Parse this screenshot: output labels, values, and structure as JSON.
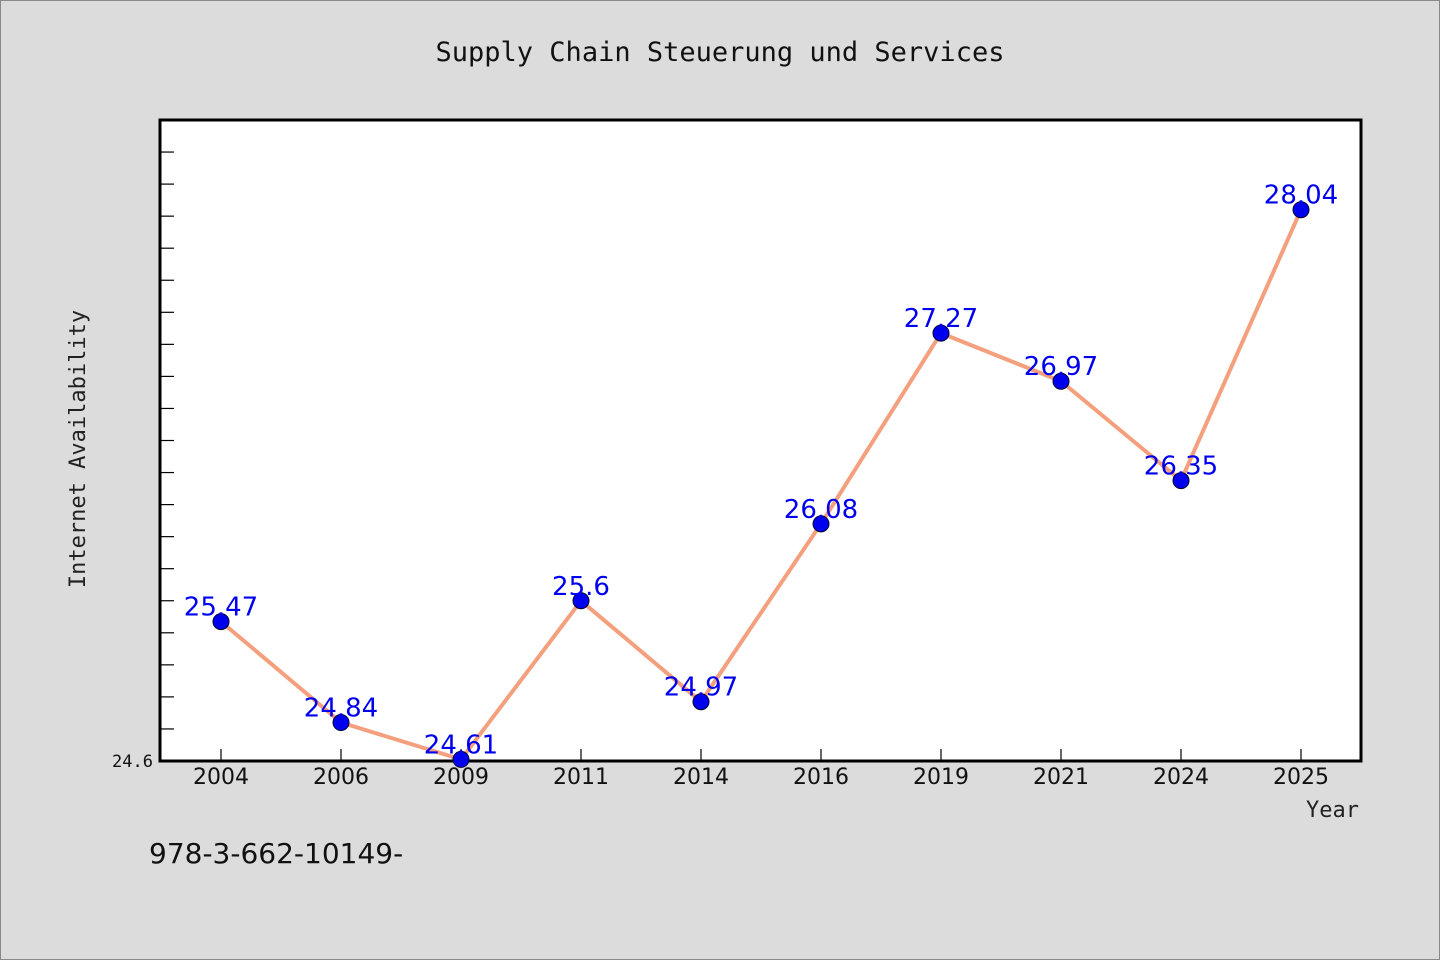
{
  "chart_data": {
    "type": "line",
    "title": "Supply Chain Steuerung und Services",
    "xlabel": "Year",
    "ylabel": "Internet Availability",
    "categories": [
      "2004",
      "2006",
      "2009",
      "2011",
      "2014",
      "2016",
      "2019",
      "2021",
      "2024",
      "2025"
    ],
    "values": [
      25.47,
      24.84,
      24.61,
      25.6,
      24.97,
      26.08,
      27.27,
      26.97,
      26.35,
      28.04
    ],
    "data_labels": [
      "25.47",
      "24.84",
      "24.61",
      "25.6",
      "24.97",
      "26.08",
      "27.27",
      "26.97",
      "26.35",
      "28.04"
    ],
    "ylim": [
      24.6,
      28.6
    ],
    "y_min_label": "24.6",
    "grid": false,
    "colors": {
      "line": "#f4a07e",
      "marker": "#0000ee",
      "data_label": "#0000ee",
      "plot_background": "#ffffff",
      "page_background": "#dcdcdc"
    }
  },
  "footnote": "978-3-662-10149-"
}
